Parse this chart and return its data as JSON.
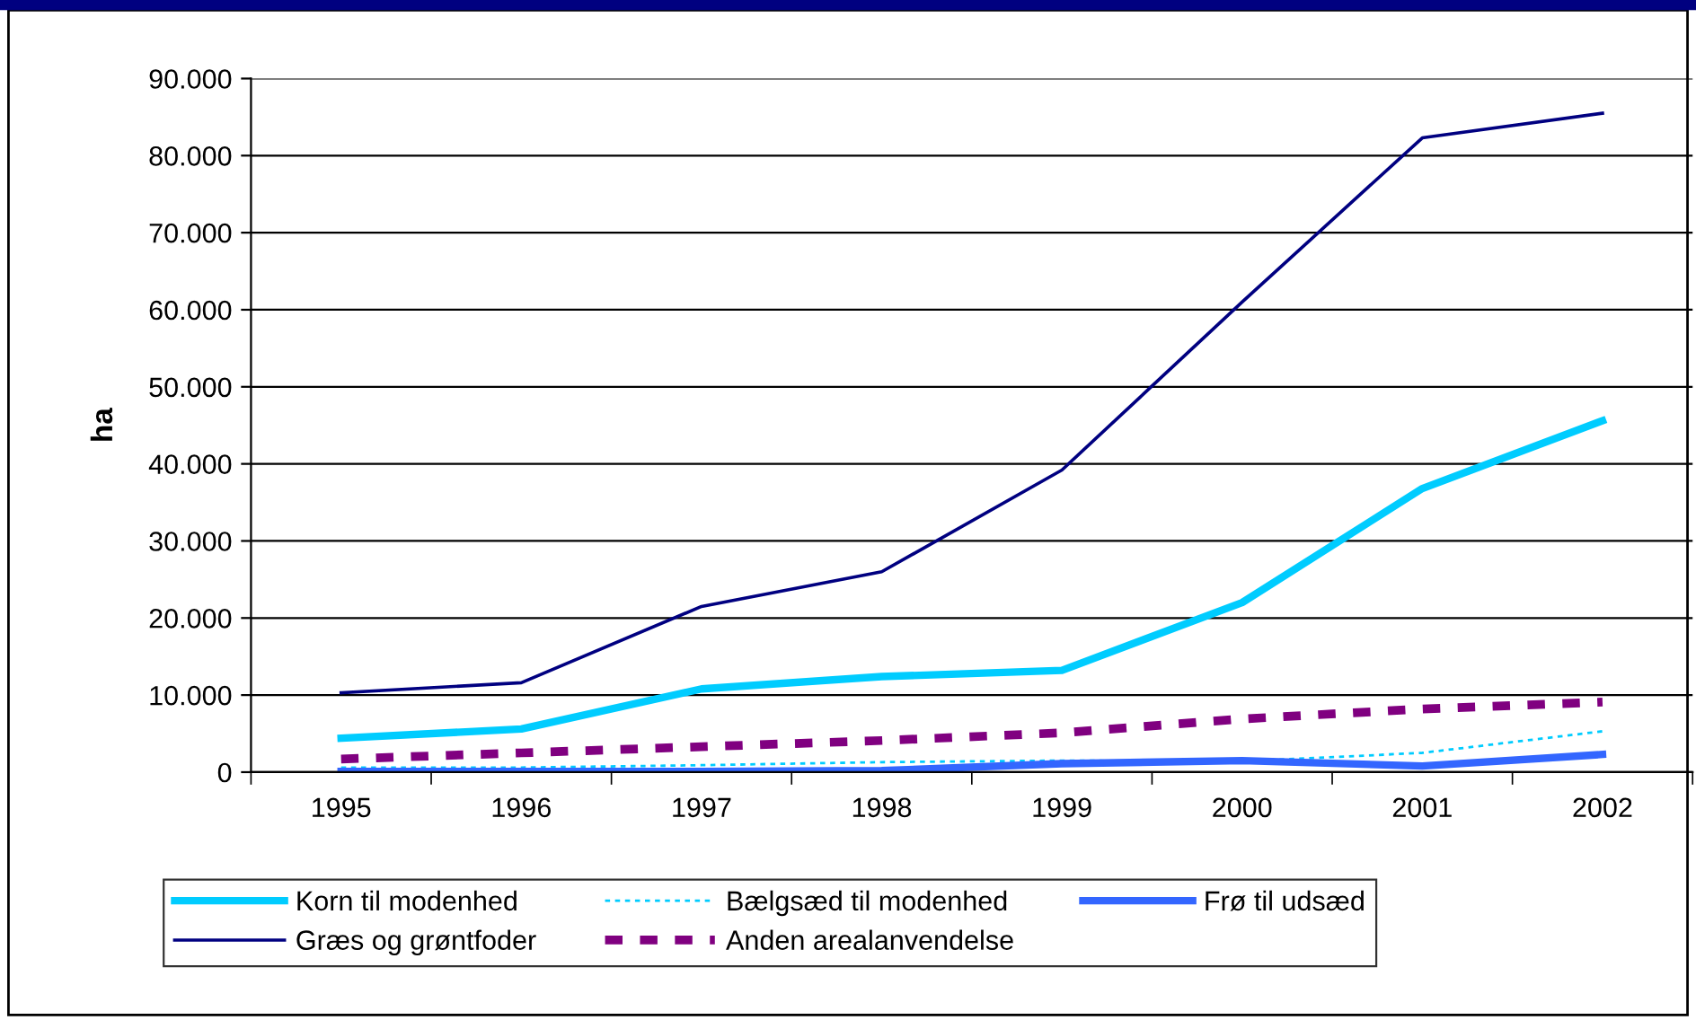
{
  "chart_data": {
    "type": "line",
    "ylabel": "ha",
    "categories": [
      "1995",
      "1996",
      "1997",
      "1998",
      "1999",
      "2000",
      "2001",
      "2002"
    ],
    "series": [
      {
        "name": "Korn til modenhed",
        "color": "#00ccff",
        "line_style": "solid",
        "values": [
          4400,
          5600,
          10800,
          12400,
          13200,
          22000,
          36800,
          45600
        ]
      },
      {
        "name": "Bælgsæd til modenhed",
        "color": "#00ccff",
        "line_style": "dotted",
        "values": [
          600,
          600,
          900,
          1300,
          1500,
          1400,
          2500,
          5300
        ]
      },
      {
        "name": "Frø til udsæd",
        "color": "#3366ff",
        "line_style": "solid",
        "values": [
          100,
          100,
          100,
          200,
          1100,
          1500,
          800,
          2300
        ]
      },
      {
        "name": "Græs og grøntfoder",
        "color": "#000080",
        "line_style": "solid",
        "values": [
          10300,
          11600,
          21500,
          26000,
          39200,
          61000,
          82300,
          85500
        ]
      },
      {
        "name": "Anden arealanvendelse",
        "color": "#800080",
        "line_style": "dashed",
        "values": [
          1700,
          2500,
          3300,
          4100,
          5100,
          6900,
          8200,
          9100
        ]
      }
    ],
    "ylim": [
      0,
      90000
    ],
    "yticks": [
      0,
      {
        "value": 10000,
        "label": "10.000"
      },
      {
        "value": 20000,
        "label": "20.000"
      },
      {
        "value": 30000,
        "label": "30.000"
      },
      {
        "value": 40000,
        "label": "40.000"
      },
      {
        "value": 50000,
        "label": "50.000"
      },
      {
        "value": 60000,
        "label": "60.000"
      },
      {
        "value": 70000,
        "label": "70.000"
      },
      {
        "value": 80000,
        "label": "80.000"
      },
      {
        "value": 90000,
        "label": "90.000"
      }
    ],
    "grid": "y",
    "legend": "bottom"
  }
}
